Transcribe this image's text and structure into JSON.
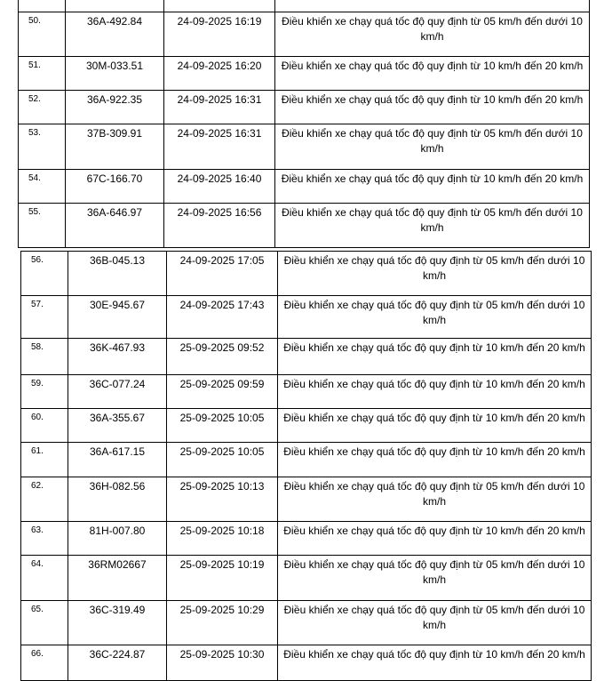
{
  "table1": {
    "rows": [
      {
        "no": "50.",
        "plate": "36A-492.84",
        "time": "24-09-2025 16:19",
        "violation": "Điều khiển xe chạy quá tốc độ quy định từ 05 km/h đến dưới 10 km/h"
      },
      {
        "no": "51.",
        "plate": "30M-033.51",
        "time": "24-09-2025 16:20",
        "violation": "Điều khiển xe chạy quá tốc độ quy định từ 10 km/h đến 20 km/h"
      },
      {
        "no": "52.",
        "plate": "36A-922.35",
        "time": "24-09-2025 16:31",
        "violation": "Điều khiển xe chạy quá tốc độ quy định từ 10 km/h đến 20 km/h"
      },
      {
        "no": "53.",
        "plate": "37B-309.91",
        "time": "24-09-2025 16:31",
        "violation": "Điều khiển xe chạy quá tốc độ quy định từ 05 km/h đến dưới 10 km/h"
      },
      {
        "no": "54.",
        "plate": "67C-166.70",
        "time": "24-09-2025 16:40",
        "violation": "Điều khiển xe chạy quá tốc độ quy định từ 10 km/h đến 20 km/h"
      },
      {
        "no": "55.",
        "plate": "36A-646.97",
        "time": "24-09-2025 16:56",
        "violation": "Điều khiển xe chạy quá tốc độ quy định từ 05 km/h đến dưới 10 km/h"
      }
    ]
  },
  "table2": {
    "rows": [
      {
        "no": "56.",
        "plate": "36B-045.13",
        "time": "24-09-2025 17:05",
        "violation": "Điều khiển xe chạy quá tốc độ quy định từ 05 km/h đến dưới 10 km/h"
      },
      {
        "no": "57.",
        "plate": "30E-945.67",
        "time": "24-09-2025 17:43",
        "violation": "Điều khiển xe chạy quá tốc độ quy định từ 05 km/h đến dưới 10 km/h"
      },
      {
        "no": "58.",
        "plate": "36K-467.93",
        "time": "25-09-2025 09:52",
        "violation": "Điều khiển xe chạy quá tốc độ quy định từ 10 km/h đến 20 km/h"
      },
      {
        "no": "59.",
        "plate": "36C-077.24",
        "time": "25-09-2025 09:59",
        "violation": "Điều khiển xe chạy quá tốc độ quy định từ 10 km/h đến 20 km/h"
      },
      {
        "no": "60.",
        "plate": "36A-355.67",
        "time": "25-09-2025 10:05",
        "violation": "Điều khiển xe chạy quá tốc độ quy định từ 10 km/h đến 20 km/h"
      },
      {
        "no": "61.",
        "plate": "36A-617.15",
        "time": "25-09-2025 10:05",
        "violation": "Điều khiển xe chạy quá tốc độ quy định từ 10 km/h đến 20 km/h"
      },
      {
        "no": "62.",
        "plate": "36H-082.56",
        "time": "25-09-2025 10:13",
        "violation": "Điều khiển xe chạy quá tốc độ quy định từ 05 km/h đến dưới 10 km/h"
      },
      {
        "no": "63.",
        "plate": "81H-007.80",
        "time": "25-09-2025 10:18",
        "violation": "Điều khiển xe chạy quá tốc độ quy định từ 10 km/h đến 20 km/h"
      },
      {
        "no": "64.",
        "plate": "36RM02667",
        "time": "25-09-2025 10:19",
        "violation": "Điều khiển xe chạy quá tốc độ quy định từ 05 km/h đến dưới 10 km/h"
      },
      {
        "no": "65.",
        "plate": "36C-319.49",
        "time": "25-09-2025 10:29",
        "violation": "Điều khiển xe chạy quá tốc độ quy định từ 05 km/h đến dưới 10 km/h"
      },
      {
        "no": "66.",
        "plate": "36C-224.87",
        "time": "25-09-2025 10:30",
        "violation": "Điều khiển xe chạy quá tốc độ quy định từ 10 km/h đến 20 km/h"
      }
    ]
  }
}
